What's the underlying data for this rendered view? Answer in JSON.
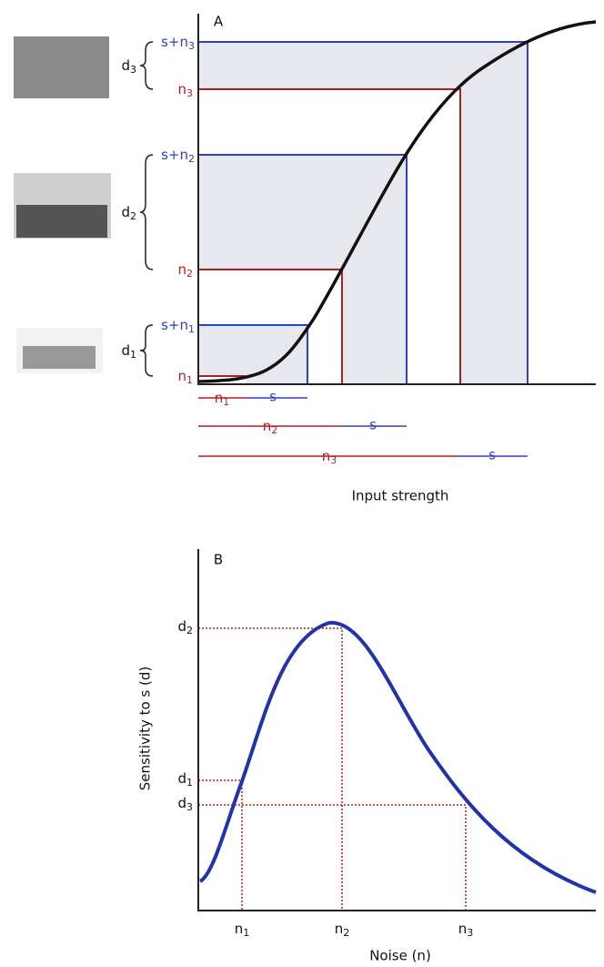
{
  "panel_a": {
    "label": "A",
    "levels": [
      {
        "signal": {
          "base": "s+n",
          "sub": "1"
        },
        "noise": {
          "base": "n",
          "sub": "1"
        },
        "sensitivity": {
          "base": "d",
          "sub": "1"
        }
      },
      {
        "signal": {
          "base": "s+n",
          "sub": "2"
        },
        "noise": {
          "base": "n",
          "sub": "2"
        },
        "sensitivity": {
          "base": "d",
          "sub": "2"
        }
      },
      {
        "signal": {
          "base": "s+n",
          "sub": "3"
        },
        "noise": {
          "base": "n",
          "sub": "3"
        },
        "sensitivity": {
          "base": "d",
          "sub": "3"
        }
      }
    ],
    "ranges": [
      {
        "noise": {
          "base": "n",
          "sub": "1"
        },
        "signal": "s"
      },
      {
        "noise": {
          "base": "n",
          "sub": "2"
        },
        "signal": "s"
      },
      {
        "noise": {
          "base": "n",
          "sub": "3"
        },
        "signal": "s"
      }
    ],
    "x_axis_label": "Input strength"
  },
  "panel_b": {
    "label": "B",
    "y_axis_label": "Sensitivity to s (d)",
    "x_axis_label": "Noise (n)",
    "y_ticks": [
      {
        "base": "d",
        "sub": "2"
      },
      {
        "base": "d",
        "sub": "1"
      },
      {
        "base": "d",
        "sub": "3"
      }
    ],
    "x_ticks": [
      {
        "base": "n",
        "sub": "1"
      },
      {
        "base": "n",
        "sub": "2"
      },
      {
        "base": "n",
        "sub": "3"
      }
    ]
  }
}
